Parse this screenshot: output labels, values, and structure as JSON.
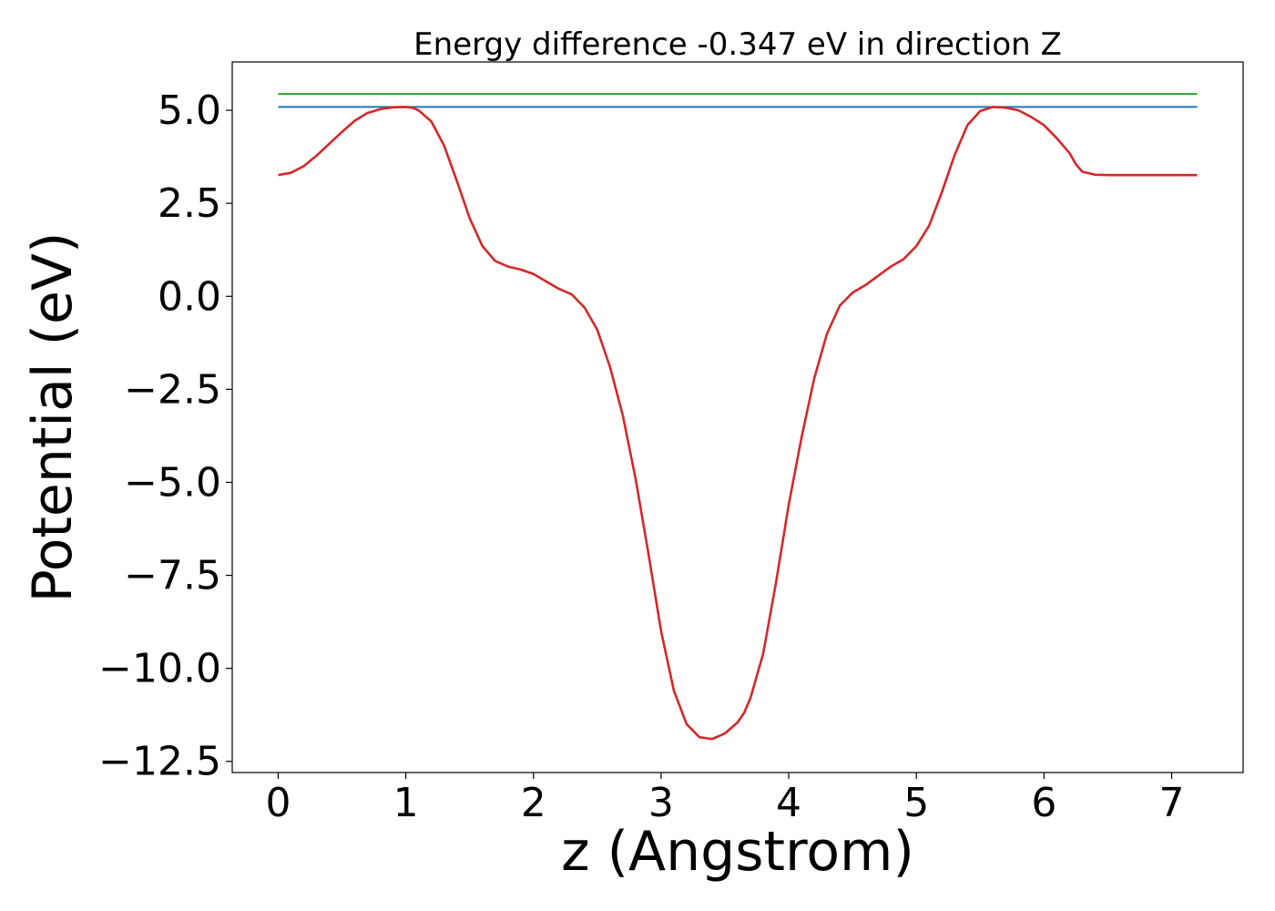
{
  "chart_data": {
    "type": "line",
    "title": "Energy difference -0.347 eV in direction Z",
    "xlabel": "z (Angstrom)",
    "ylabel": "Potential (eV)",
    "xlim": [
      -0.36,
      7.56
    ],
    "ylim": [
      -12.8,
      6.3
    ],
    "grid": false,
    "xticks": [
      0,
      1,
      2,
      3,
      4,
      5,
      6,
      7
    ],
    "xtick_labels": [
      "0",
      "1",
      "2",
      "3",
      "4",
      "5",
      "6",
      "7"
    ],
    "yticks": [
      5.0,
      2.5,
      0.0,
      -2.5,
      -5.0,
      -7.5,
      -10.0,
      -12.5
    ],
    "ytick_labels": [
      "5.0",
      "2.5",
      "0.0",
      "−2.5",
      "−5.0",
      "−7.5",
      "−10.0",
      "−12.5"
    ],
    "series": [
      {
        "color": "#2ca02c",
        "x": [
          0,
          7.2
        ],
        "y": [
          5.44,
          5.44
        ]
      },
      {
        "color": "#1f77b4",
        "x": [
          0,
          7.2
        ],
        "y": [
          5.09,
          5.09
        ]
      },
      {
        "color": "#d62728",
        "x": [
          0,
          0.1,
          0.2,
          0.3,
          0.4,
          0.5,
          0.6,
          0.7,
          0.8,
          0.9,
          1.0,
          1.05,
          1.1,
          1.2,
          1.3,
          1.4,
          1.5,
          1.6,
          1.7,
          1.8,
          1.9,
          2.0,
          2.1,
          2.2,
          2.3,
          2.4,
          2.5,
          2.6,
          2.7,
          2.8,
          2.9,
          3.0,
          3.1,
          3.2,
          3.3,
          3.4,
          3.5,
          3.6,
          3.65,
          3.7,
          3.8,
          3.9,
          4.0,
          4.1,
          4.2,
          4.3,
          4.4,
          4.5,
          4.6,
          4.7,
          4.8,
          4.9,
          5.0,
          5.1,
          5.2,
          5.3,
          5.4,
          5.5,
          5.6,
          5.7,
          5.8,
          5.9,
          6.0,
          6.1,
          6.2,
          6.25,
          6.3,
          6.4,
          6.5,
          6.6,
          6.7,
          6.8,
          6.9,
          7.0,
          7.1,
          7.2
        ],
        "y": [
          3.26,
          3.32,
          3.5,
          3.78,
          4.1,
          4.42,
          4.72,
          4.93,
          5.03,
          5.08,
          5.09,
          5.07,
          5.0,
          4.7,
          4.05,
          3.1,
          2.1,
          1.35,
          0.95,
          0.8,
          0.72,
          0.6,
          0.4,
          0.2,
          0.05,
          -0.3,
          -0.9,
          -1.9,
          -3.2,
          -4.9,
          -6.9,
          -9.0,
          -10.6,
          -11.5,
          -11.85,
          -11.9,
          -11.75,
          -11.45,
          -11.2,
          -10.8,
          -9.6,
          -7.7,
          -5.6,
          -3.8,
          -2.2,
          -1.0,
          -0.25,
          0.1,
          0.3,
          0.55,
          0.8,
          1.0,
          1.35,
          1.9,
          2.8,
          3.8,
          4.6,
          4.98,
          5.09,
          5.07,
          5.0,
          4.82,
          4.6,
          4.25,
          3.85,
          3.55,
          3.35,
          3.27,
          3.26,
          3.26,
          3.26,
          3.26,
          3.26,
          3.26,
          3.26,
          3.26
        ]
      }
    ]
  }
}
